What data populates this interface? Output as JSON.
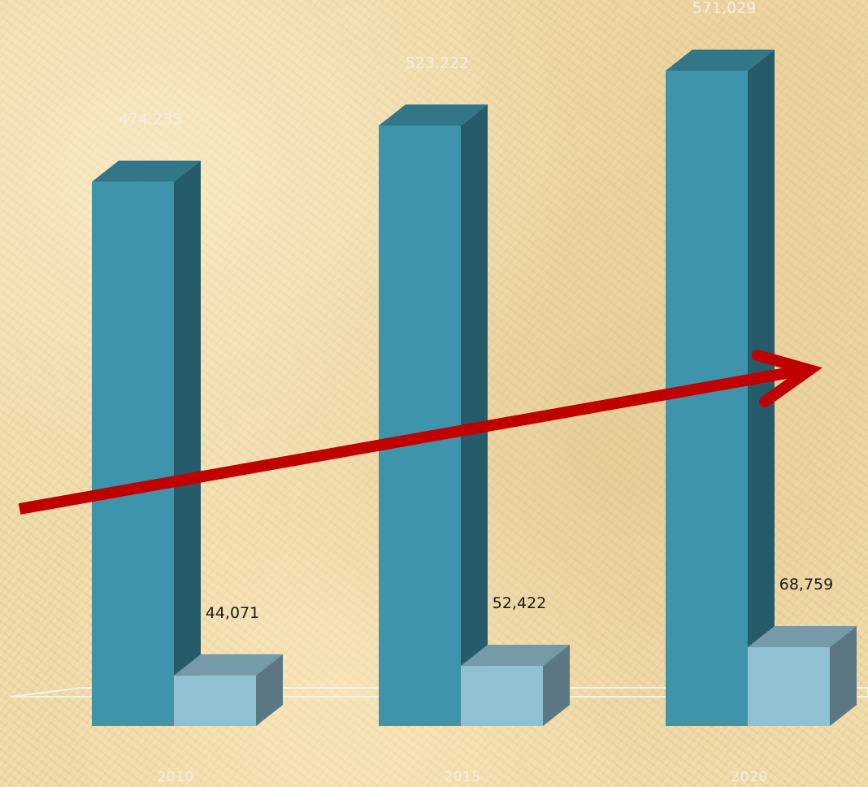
{
  "chart_data": {
    "type": "bar",
    "style": "3d-clustered-column",
    "categories": [
      "2010",
      "2015",
      "2020"
    ],
    "series": [
      {
        "values": [
          474233,
          523222,
          571029
        ],
        "value_labels": [
          "474,233",
          "523,222",
          "571,029"
        ],
        "color": "#3e94aa",
        "label_color": "#f3eee3"
      },
      {
        "values": [
          44071,
          52422,
          68759
        ],
        "value_labels": [
          "44,071",
          "52,422",
          "68,759"
        ],
        "color": "#92c0d3",
        "label_color": "#1a1a1a"
      }
    ],
    "ylim": [
      0,
      571029
    ],
    "grid": false,
    "legend": "none",
    "annotations": [
      {
        "type": "trend-arrow",
        "color": "#c00000"
      }
    ],
    "colors": {
      "floor": "#f7f2e8",
      "background": "#efd9a4"
    }
  }
}
